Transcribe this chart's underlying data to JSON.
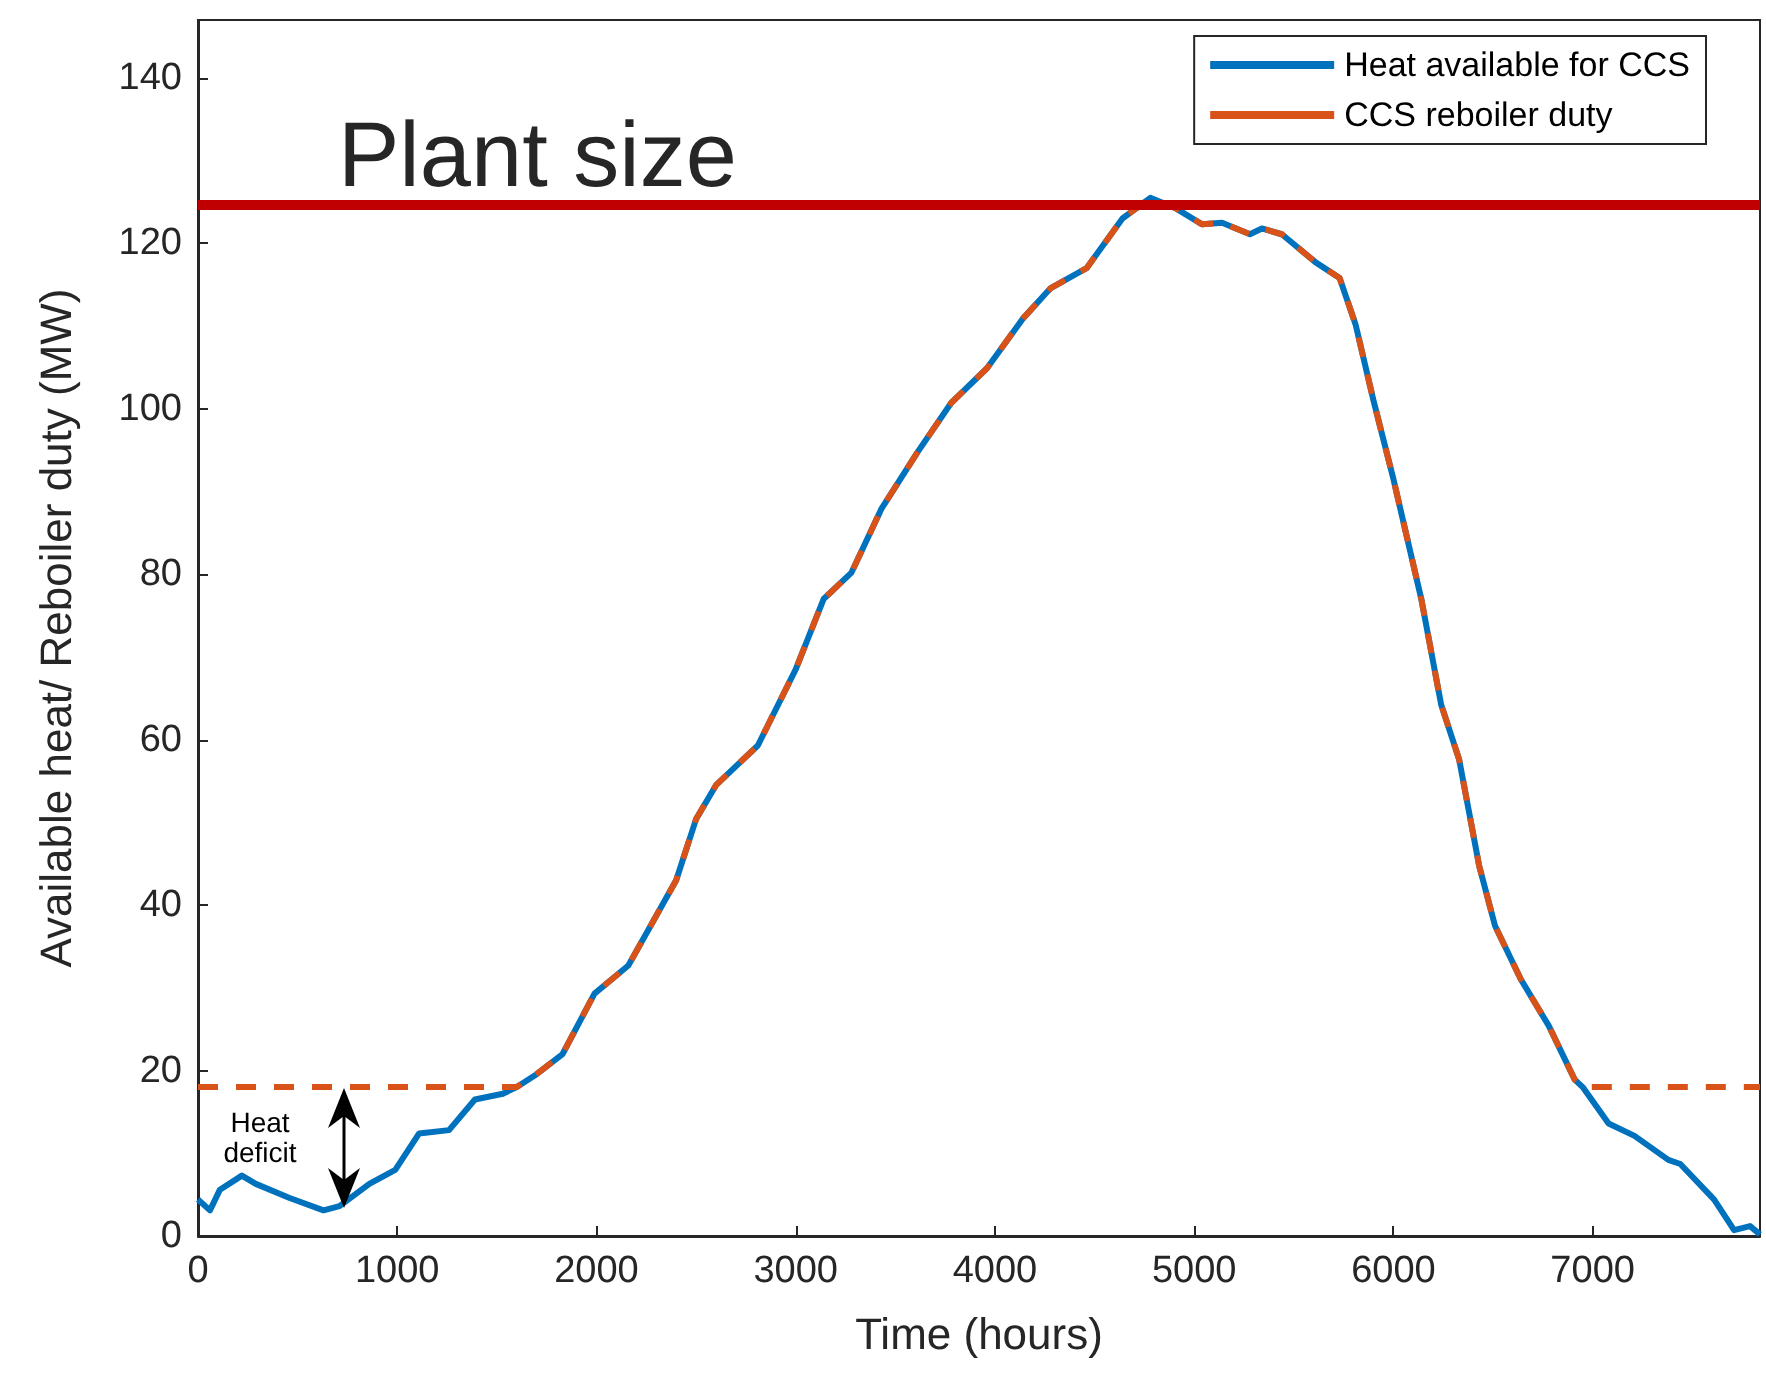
{
  "chart_data": {
    "type": "line",
    "xlabel": "Time (hours)",
    "ylabel": "Available heat/ Reboiler duty (MW)",
    "x": [
      0,
      60,
      110,
      220,
      290,
      460,
      630,
      710,
      860,
      990,
      1110,
      1260,
      1390,
      1530,
      1600,
      1690,
      1830,
      1990,
      2160,
      2400,
      2500,
      2600,
      2810,
      3000,
      3140,
      3280,
      3430,
      3610,
      3780,
      3960,
      4140,
      4280,
      4460,
      4640,
      4780,
      4910,
      5040,
      5140,
      5280,
      5340,
      5440,
      5610,
      5730,
      5810,
      5900,
      6000,
      6140,
      6240,
      6330,
      6430,
      6510,
      6640,
      6780,
      6910,
      6950,
      7080,
      7210,
      7380,
      7440,
      7610,
      7710,
      7790,
      7840
    ],
    "series": [
      {
        "name": "Heat available for CCS",
        "color": "#0072bd",
        "line_style": "solid",
        "values": [
          4.4,
          3.1,
          5.6,
          7.3,
          6.3,
          4.6,
          3.1,
          3.6,
          6.3,
          8.0,
          12.4,
          12.8,
          16.5,
          17.2,
          18.0,
          19.4,
          22.0,
          29.3,
          32.7,
          43,
          50.4,
          54.5,
          59.3,
          68.5,
          77,
          80.2,
          87.9,
          94.7,
          100.7,
          104.9,
          110.9,
          114.6,
          117.0,
          123.0,
          125.5,
          124.2,
          122.3,
          122.5,
          121.1,
          121.8,
          121.1,
          117.7,
          115.8,
          110.2,
          101,
          91.5,
          77,
          64.2,
          57.6,
          44.8,
          37.5,
          31.0,
          25.4,
          18.9,
          18.0,
          13.6,
          12.1,
          9.2,
          8.7,
          4.4,
          0.7,
          1.2,
          0.2
        ]
      },
      {
        "name": "CCS reboiler duty",
        "color": "#d95319",
        "line_style": "dashed",
        "values": [
          18,
          18,
          18,
          18,
          18,
          18,
          18,
          18,
          18,
          18,
          18,
          18,
          18,
          18,
          18.0,
          19.4,
          22.0,
          29.3,
          32.7,
          43,
          50.4,
          54.5,
          59.3,
          68.5,
          77,
          80.2,
          87.9,
          94.7,
          100.7,
          104.9,
          110.9,
          114.6,
          117.0,
          123.0,
          125.5,
          124.2,
          122.3,
          122.5,
          121.1,
          121.8,
          121.1,
          117.7,
          115.8,
          110.2,
          101,
          91.5,
          77,
          64.2,
          57.6,
          44.8,
          37.5,
          31.0,
          25.4,
          18.9,
          18.0,
          18,
          18,
          18,
          18,
          18,
          18,
          18,
          18
        ]
      }
    ],
    "xlim": [
      0,
      7840
    ],
    "xticks": [
      0,
      1000,
      2000,
      3000,
      4000,
      5000,
      6000,
      7000
    ],
    "ylim": [
      0,
      147
    ],
    "yticks": [
      0,
      20,
      40,
      60,
      80,
      100,
      120,
      140
    ],
    "ref_lines": [
      {
        "axis": "y",
        "value": 124.7,
        "label": "Plant size",
        "color": "#c00000"
      }
    ],
    "annotations": [
      "Heat deficit"
    ],
    "grid": false,
    "legend": "top right",
    "marker": "none"
  }
}
